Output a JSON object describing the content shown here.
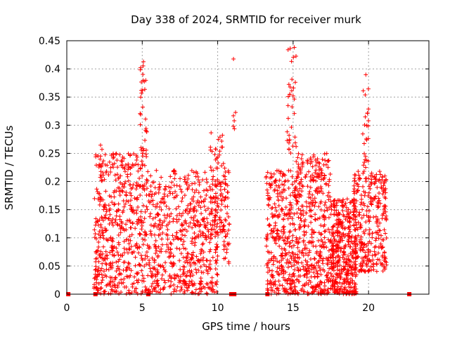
{
  "chart_data": {
    "type": "scatter",
    "title": "Day 338 of 2024, SRMTID for receiver murk",
    "xlabel": "GPS time / hours",
    "ylabel": "SRMTID / TECUs",
    "xlim": [
      0,
      24
    ],
    "ylim": [
      0,
      0.45
    ],
    "x_ticks": [
      "0",
      "5",
      "10",
      "15",
      "20"
    ],
    "y_ticks": [
      "0",
      "0.05",
      "0.1",
      "0.15",
      "0.2",
      "0.25",
      "0.3",
      "0.35",
      "0.4",
      "0.45"
    ],
    "grid": true,
    "marker": "plus",
    "color": "#ff0000",
    "zero_markers_x": [
      0.1,
      1.9,
      5.4,
      10.9,
      11.1,
      13.3,
      22.7
    ],
    "clusters": [
      {
        "x_range": [
          1.8,
          5.3
        ],
        "y_range": [
          0.0,
          0.25
        ],
        "count": 520
      },
      {
        "x_range": [
          2.2,
          2.4
        ],
        "y_range": [
          0.2,
          0.29
        ],
        "count": 12
      },
      {
        "x_range": [
          4.8,
          5.3
        ],
        "y_range": [
          0.25,
          0.42
        ],
        "count": 30
      },
      {
        "x_range": [
          5.3,
          10.0
        ],
        "y_range": [
          0.0,
          0.22
        ],
        "count": 600
      },
      {
        "x_range": [
          9.5,
          10.5
        ],
        "y_range": [
          0.1,
          0.29
        ],
        "count": 90
      },
      {
        "x_range": [
          10.4,
          10.8
        ],
        "y_range": [
          0.05,
          0.24
        ],
        "count": 40
      },
      {
        "x_range": [
          11.0,
          11.2
        ],
        "y_range": [
          0.28,
          0.42
        ],
        "count": 6
      },
      {
        "x_range": [
          13.2,
          15.2
        ],
        "y_range": [
          0.0,
          0.22
        ],
        "count": 330
      },
      {
        "x_range": [
          14.6,
          15.2
        ],
        "y_range": [
          0.25,
          0.44
        ],
        "count": 35
      },
      {
        "x_range": [
          15.2,
          17.5
        ],
        "y_range": [
          0.0,
          0.25
        ],
        "count": 420
      },
      {
        "x_range": [
          17.5,
          19.2
        ],
        "y_range": [
          0.0,
          0.17
        ],
        "count": 420
      },
      {
        "x_range": [
          19.0,
          21.2
        ],
        "y_range": [
          0.04,
          0.22
        ],
        "count": 300
      },
      {
        "x_range": [
          19.6,
          20.0
        ],
        "y_range": [
          0.22,
          0.41
        ],
        "count": 25
      }
    ]
  }
}
